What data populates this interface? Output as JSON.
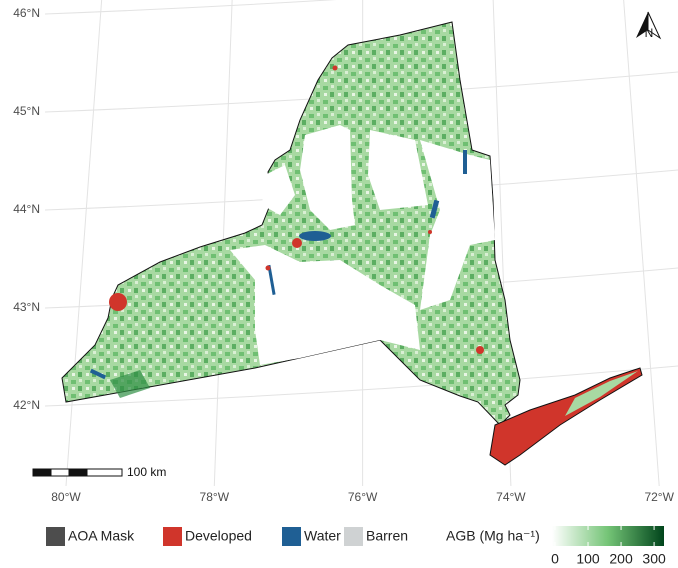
{
  "map": {
    "latitude_labels": [
      "46°N",
      "45°N",
      "44°N",
      "43°N",
      "42°N"
    ],
    "longitude_labels": [
      "80°W",
      "78°W",
      "76°W",
      "74°W",
      "72°W"
    ],
    "north_arrow": "N",
    "scale_bar": "100 km"
  },
  "legend": {
    "items": [
      {
        "label": "AOA Mask",
        "color": "#4d4d4d"
      },
      {
        "label": "Developed",
        "color": "#d0352b"
      },
      {
        "label": "Water",
        "color": "#1f5f94"
      },
      {
        "label": "Barren",
        "color": "#cfd2d3"
      }
    ]
  },
  "colorbar": {
    "title": "AGB (Mg ha⁻¹)",
    "ticks": [
      0,
      100,
      200,
      300
    ],
    "lim": [
      0,
      330
    ],
    "colors": [
      "#ffffff",
      "#00441b"
    ]
  }
}
